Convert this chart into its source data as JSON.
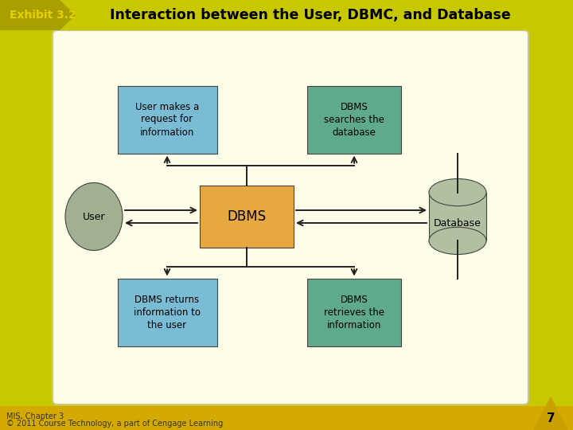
{
  "title": "Interaction between the User, DBMC, and Database",
  "exhibit_label": "Exhibit 3.2",
  "header_color": "#c8c800",
  "header_text_color": "#000000",
  "footer_color": "#d4aa00",
  "footer_text1": "MIS, Chapter 3",
  "footer_text2": "© 2011 Course Technology, a part of Cengage Learning",
  "page_number": "7",
  "diagram_bg": "#fdfde8",
  "diagram_border": "#c8c890",
  "box_blue": "#7bbcd5",
  "box_green": "#5faa8c",
  "box_orange": "#e8a840",
  "ellipse_color": "#a0b090",
  "cylinder_color": "#b0c0a0",
  "arrow_color": "#222222",
  "line_color": "#222222",
  "label_user_makes": "User makes a\nrequest for\ninformation",
  "label_dbms_searches": "DBMS\nsearches the\ndatabase",
  "label_dbms_center": "DBMS",
  "label_user": "User",
  "label_database": "Database",
  "label_dbms_returns": "DBMS returns\ninformation to\nthe user",
  "label_dbms_retrieves": "DBMS\nretrieves the\ninformation"
}
